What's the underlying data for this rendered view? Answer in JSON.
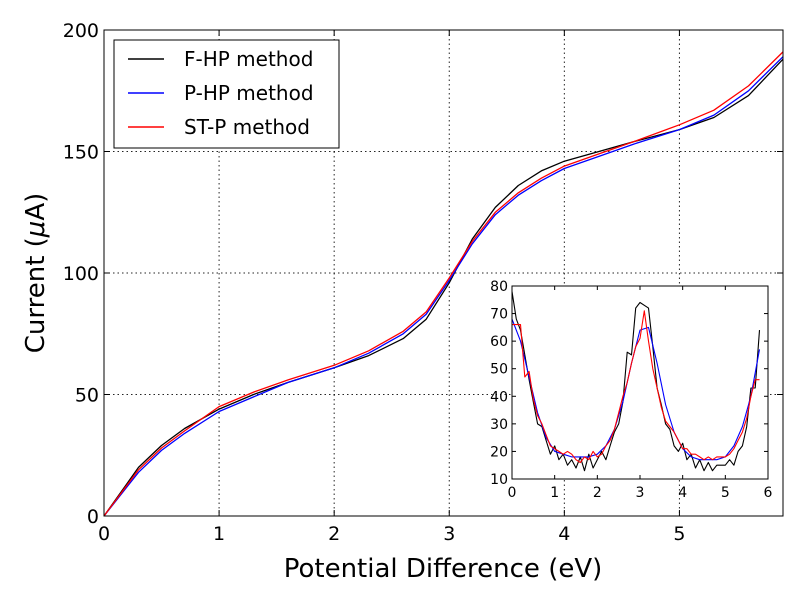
{
  "chart_data": [
    {
      "id": "main",
      "type": "line",
      "title": "",
      "xlabel": "Potential Difference (eV)",
      "ylabel_prefix": "Current (",
      "ylabel_mu": "μ",
      "ylabel_suffix": "A)",
      "xlim": [
        0,
        5.9
      ],
      "ylim": [
        0,
        200
      ],
      "xticks": [
        0,
        1,
        2,
        3,
        4,
        5
      ],
      "yticks": [
        0,
        50,
        100,
        150,
        200
      ],
      "xtick_labels": [
        "0",
        "1",
        "2",
        "3",
        "4",
        "5"
      ],
      "ytick_labels": [
        "0",
        "50",
        "100",
        "150",
        "200"
      ],
      "grid": true,
      "legend": {
        "placement": "top-left"
      },
      "series": [
        {
          "name": "F-HP method",
          "color": "#000000",
          "x": [
            0,
            0.3,
            0.5,
            0.7,
            1.0,
            1.3,
            1.6,
            2.0,
            2.3,
            2.6,
            2.8,
            3.0,
            3.2,
            3.4,
            3.6,
            3.8,
            4.0,
            4.3,
            4.6,
            5.0,
            5.3,
            5.6,
            5.9
          ],
          "y": [
            0,
            20,
            29,
            36,
            44,
            50,
            55,
            61,
            66,
            73,
            81,
            96,
            114,
            127,
            136,
            142,
            146,
            150,
            154,
            159,
            164,
            173,
            188
          ]
        },
        {
          "name": "P-HP method",
          "color": "#0000ff",
          "x": [
            0,
            0.3,
            0.5,
            0.7,
            1.0,
            1.3,
            1.6,
            2.0,
            2.3,
            2.6,
            2.8,
            3.0,
            3.2,
            3.4,
            3.6,
            3.8,
            4.0,
            4.3,
            4.6,
            5.0,
            5.3,
            5.6,
            5.9
          ],
          "y": [
            0,
            18,
            27,
            34,
            43,
            49,
            55,
            61,
            67,
            75,
            83,
            97,
            112,
            124,
            132,
            138,
            143,
            148,
            153,
            159,
            165,
            175,
            189
          ]
        },
        {
          "name": "ST-P method",
          "color": "#ff0000",
          "x": [
            0,
            0.3,
            0.5,
            0.7,
            1.0,
            1.3,
            1.6,
            2.0,
            2.3,
            2.6,
            2.8,
            3.0,
            3.2,
            3.4,
            3.6,
            3.8,
            4.0,
            4.3,
            4.6,
            5.0,
            5.3,
            5.6,
            5.9
          ],
          "y": [
            0,
            19,
            28,
            35,
            45,
            51,
            56,
            62,
            68,
            76,
            84,
            98,
            113,
            125,
            133,
            139,
            144,
            149,
            154,
            161,
            167,
            177,
            191
          ]
        }
      ]
    },
    {
      "id": "inset",
      "type": "line",
      "title": "",
      "xlabel": "",
      "ylabel": "",
      "xlim": [
        0,
        6
      ],
      "ylim": [
        10,
        80
      ],
      "xticks": [
        0,
        1,
        2,
        3,
        4,
        5,
        6
      ],
      "yticks": [
        10,
        20,
        30,
        40,
        50,
        60,
        70,
        80
      ],
      "xtick_labels": [
        "0",
        "1",
        "2",
        "3",
        "4",
        "5",
        "6"
      ],
      "ytick_labels": [
        "10",
        "20",
        "30",
        "40",
        "50",
        "60",
        "70",
        "80"
      ],
      "grid": false,
      "series": [
        {
          "name": "F-HP method",
          "color": "#000000",
          "x": [
            0,
            0.1,
            0.2,
            0.3,
            0.4,
            0.5,
            0.6,
            0.7,
            0.8,
            0.9,
            1.0,
            1.1,
            1.2,
            1.3,
            1.4,
            1.5,
            1.6,
            1.7,
            1.8,
            1.9,
            2.0,
            2.1,
            2.2,
            2.3,
            2.4,
            2.5,
            2.6,
            2.7,
            2.8,
            2.9,
            3.0,
            3.1,
            3.2,
            3.3,
            3.4,
            3.5,
            3.6,
            3.7,
            3.8,
            3.9,
            4.0,
            4.1,
            4.2,
            4.3,
            4.4,
            4.5,
            4.6,
            4.7,
            4.8,
            4.9,
            5.0,
            5.1,
            5.2,
            5.3,
            5.4,
            5.5,
            5.6,
            5.7,
            5.8
          ],
          "y": [
            78,
            68,
            64,
            55,
            46,
            38,
            30,
            29,
            24,
            19,
            22,
            17,
            19,
            15,
            17,
            14,
            18,
            13,
            19,
            14,
            17,
            20,
            17,
            22,
            27,
            30,
            38,
            56,
            55,
            72,
            74,
            73,
            72,
            58,
            43,
            37,
            30,
            28,
            22,
            20,
            23,
            17,
            19,
            14,
            17,
            13,
            16,
            13,
            15,
            15,
            15,
            17,
            15,
            20,
            22,
            29,
            43,
            43,
            64
          ]
        },
        {
          "name": "P-HP method",
          "color": "#0000ff",
          "x": [
            0,
            0.2,
            0.4,
            0.6,
            0.8,
            1.0,
            1.2,
            1.4,
            1.6,
            1.8,
            2.0,
            2.2,
            2.4,
            2.6,
            2.8,
            3.0,
            3.2,
            3.4,
            3.6,
            3.8,
            4.0,
            4.2,
            4.4,
            4.6,
            4.8,
            5.0,
            5.2,
            5.4,
            5.6,
            5.8
          ],
          "y": [
            68,
            60,
            47,
            34,
            25,
            20,
            19,
            18,
            18,
            18,
            19,
            22,
            28,
            38,
            52,
            64,
            65,
            52,
            37,
            27,
            21,
            18,
            17,
            17,
            17,
            18,
            22,
            29,
            40,
            57
          ]
        },
        {
          "name": "ST-P method",
          "color": "#ff0000",
          "x": [
            0,
            0.1,
            0.2,
            0.3,
            0.4,
            0.5,
            0.6,
            0.7,
            0.8,
            0.9,
            1.0,
            1.1,
            1.2,
            1.3,
            1.4,
            1.5,
            1.6,
            1.7,
            1.8,
            1.9,
            2.0,
            2.1,
            2.2,
            2.3,
            2.4,
            2.5,
            2.6,
            2.7,
            2.8,
            2.9,
            3.0,
            3.1,
            3.2,
            3.3,
            3.4,
            3.5,
            3.6,
            3.7,
            3.8,
            3.9,
            4.0,
            4.1,
            4.2,
            4.3,
            4.4,
            4.5,
            4.6,
            4.7,
            4.8,
            4.9,
            5.0,
            5.1,
            5.2,
            5.3,
            5.4,
            5.5,
            5.6,
            5.7,
            5.8
          ],
          "y": [
            66,
            66,
            66,
            47,
            49,
            39,
            33,
            30,
            26,
            22,
            21,
            20,
            19,
            20,
            19,
            17,
            16,
            18,
            17,
            20,
            18,
            19,
            22,
            24,
            28,
            34,
            40,
            45,
            52,
            58,
            61,
            71,
            60,
            50,
            43,
            36,
            31,
            29,
            27,
            24,
            21,
            21,
            19,
            19,
            18,
            17,
            18,
            17,
            18,
            18,
            18,
            19,
            21,
            24,
            27,
            32,
            40,
            46,
            46
          ]
        }
      ]
    }
  ]
}
